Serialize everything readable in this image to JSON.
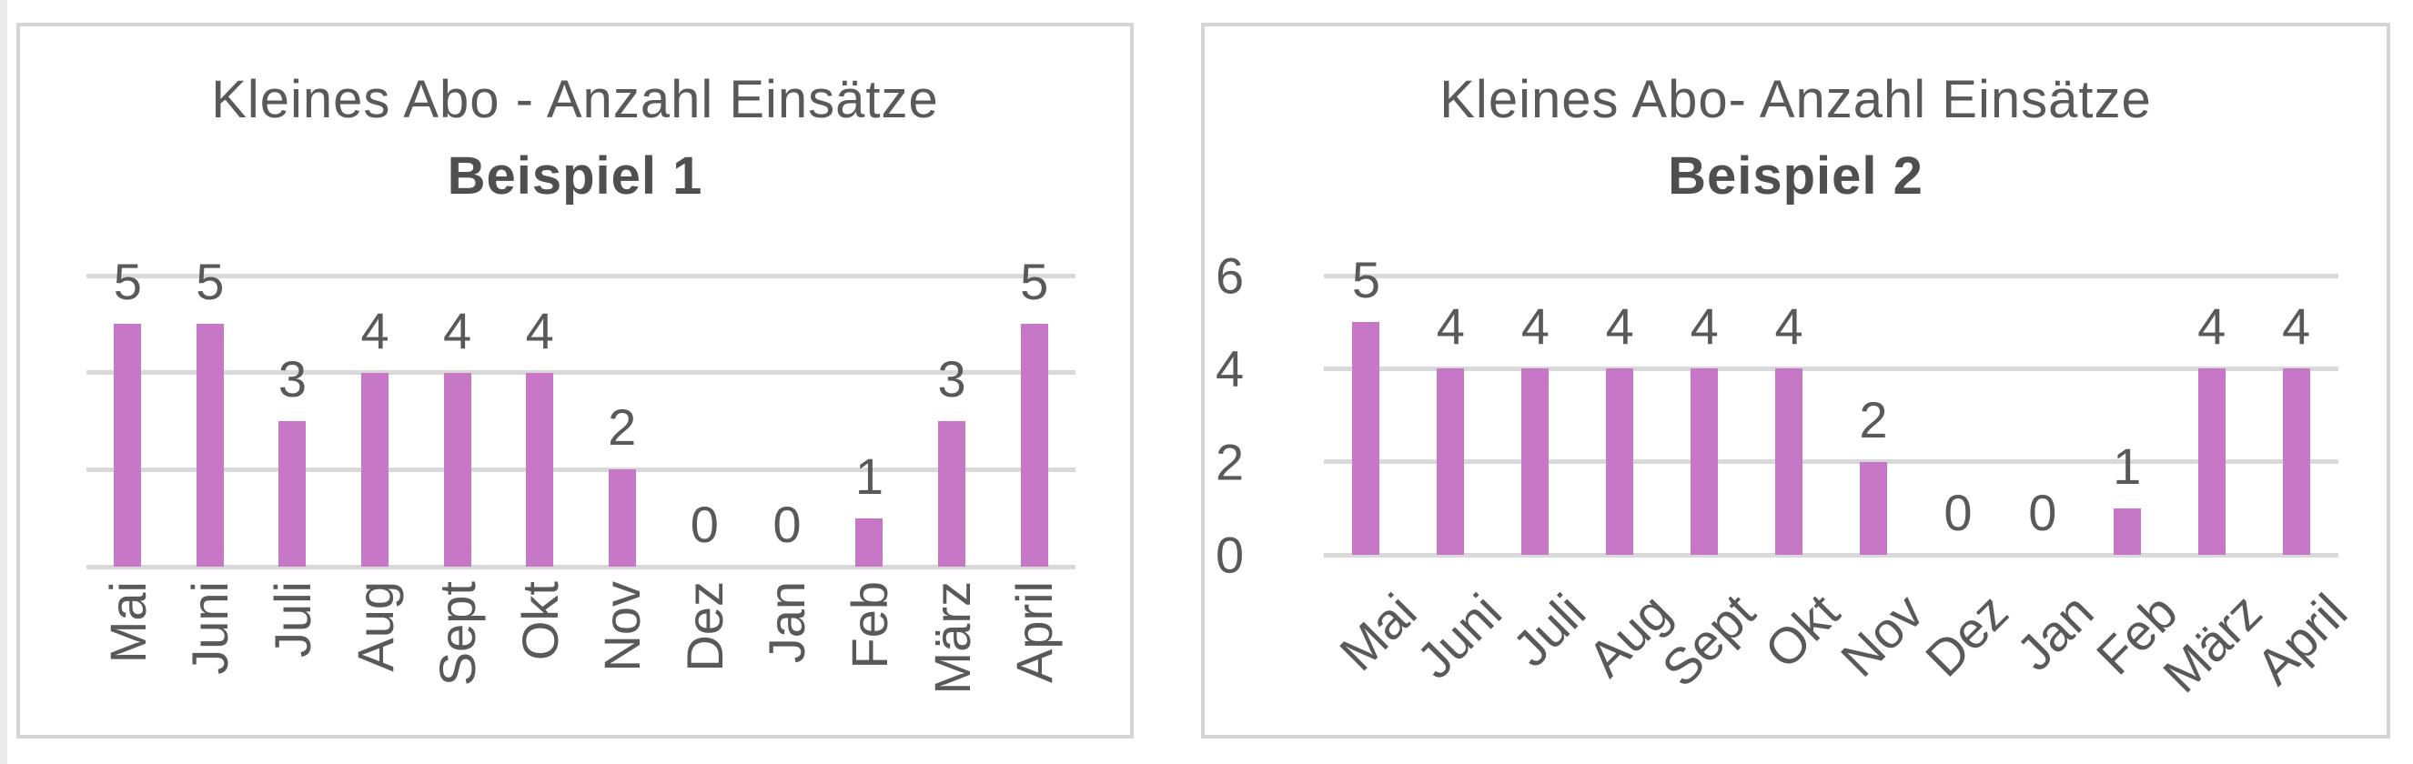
{
  "page": {
    "background": "#ffffff"
  },
  "chart_data": [
    {
      "type": "bar",
      "title": "Kleines Abo - Anzahl Einsätze",
      "subtitle": "Beispiel 1",
      "categories": [
        "Mai",
        "Juni",
        "Juli",
        "Aug",
        "Sept",
        "Okt",
        "Nov",
        "Dez",
        "Jan",
        "Feb",
        "März",
        "April"
      ],
      "values": [
        5,
        5,
        3,
        4,
        4,
        4,
        2,
        0,
        0,
        1,
        3,
        5
      ],
      "ylim": [
        0,
        6
      ],
      "gridline_values": [
        0,
        2,
        4,
        6
      ],
      "y_axis": {
        "visible": false,
        "tick_values": []
      },
      "data_labels_visible": true,
      "x_label_rotation_deg": 90,
      "legend": "none",
      "bar_color": "#c678c6",
      "gridline_color": "#d9d9d9",
      "text_color": "#595959",
      "card_border_color": "#d5d5d5"
    },
    {
      "type": "bar",
      "title": "Kleines Abo- Anzahl Einsätze",
      "subtitle": "Beispiel 2",
      "categories": [
        "Mai",
        "Juni",
        "Juli",
        "Aug",
        "Sept",
        "Okt",
        "Nov",
        "Dez",
        "Jan",
        "Feb",
        "März",
        "April"
      ],
      "values": [
        5,
        4,
        4,
        4,
        4,
        4,
        2,
        0,
        0,
        1,
        4,
        4
      ],
      "ylim": [
        0,
        6
      ],
      "gridline_values": [
        0,
        2,
        4,
        6
      ],
      "y_axis": {
        "visible": true,
        "tick_values": [
          6,
          4,
          2,
          0
        ]
      },
      "data_labels_visible": true,
      "x_label_rotation_deg": 45,
      "legend": "none",
      "bar_color": "#c678c6",
      "gridline_color": "#d9d9d9",
      "text_color": "#595959",
      "card_border_color": "#d5d5d5"
    }
  ]
}
